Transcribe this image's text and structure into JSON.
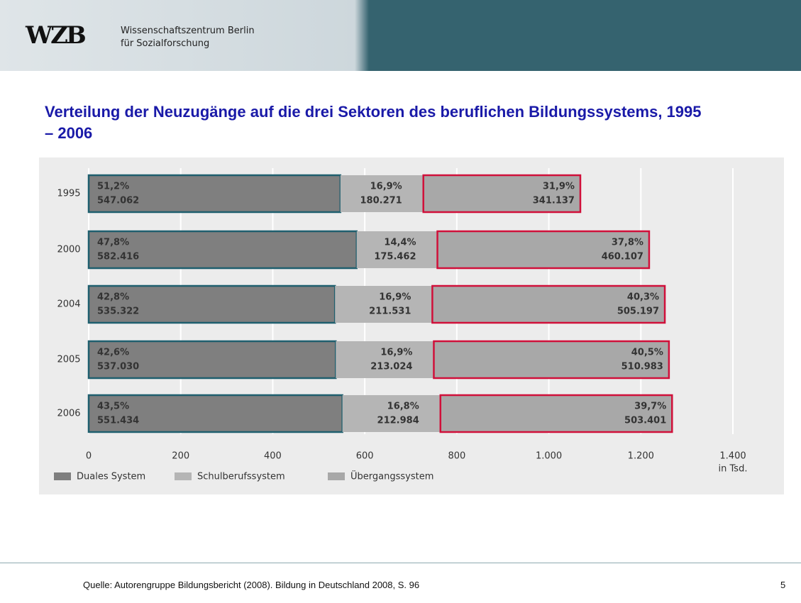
{
  "header": {
    "logo": "WZB",
    "org_line1": "Wissenschaftszentrum Berlin",
    "org_line2": "für Sozialforschung"
  },
  "chart_data": {
    "type": "bar",
    "orientation": "horizontal",
    "stacked": true,
    "title": "Verteilung der Neuzugänge auf die drei Sektoren des beruflichen Bildungssystems, 1995 – 2006",
    "x_unit_label": "in Tsd.",
    "categories": [
      "1995",
      "2000",
      "2004",
      "2005",
      "2006"
    ],
    "series": [
      {
        "name": "Duales System",
        "color": "#7f7f7f",
        "border_color": "#1f5f6e",
        "values": [
          547.062,
          582.416,
          535.322,
          537.03,
          551.434
        ],
        "value_labels": [
          "547.062",
          "582.416",
          "535.322",
          "537.030",
          "551.434"
        ],
        "shares": [
          51.2,
          47.8,
          42.8,
          42.6,
          43.5
        ],
        "share_labels": [
          "51,2%",
          "47,8%",
          "42,8%",
          "42,6%",
          "43,5%"
        ]
      },
      {
        "name": "Schulberufssystem",
        "color": "#b5b5b5",
        "values": [
          180.271,
          175.462,
          211.531,
          213.024,
          212.984
        ],
        "value_labels": [
          "180.271",
          "175.462",
          "211.531",
          "213.024",
          "212.984"
        ],
        "shares": [
          16.9,
          14.4,
          16.9,
          16.9,
          16.8
        ],
        "share_labels": [
          "16,9%",
          "14,4%",
          "16,9%",
          "16,9%",
          "16,8%"
        ]
      },
      {
        "name": "Übergangssystem",
        "color": "#a8a8a8",
        "border_color": "#d0103a",
        "values": [
          341.137,
          460.107,
          505.197,
          510.983,
          503.401
        ],
        "value_labels": [
          "341.137",
          "460.107",
          "505.197",
          "510.983",
          "503.401"
        ],
        "shares": [
          31.9,
          37.8,
          40.3,
          40.5,
          39.7
        ],
        "share_labels": [
          "31,9%",
          "37,8%",
          "40,3%",
          "40,5%",
          "39,7%"
        ]
      }
    ],
    "xlim": [
      0,
      1400
    ],
    "xticks": [
      0,
      200,
      400,
      600,
      800,
      {
        "value": 1000,
        "label": "1.000"
      },
      {
        "value": 1200,
        "label": "1.200"
      },
      {
        "value": 1400,
        "label": "1.400"
      }
    ],
    "grid": true
  },
  "footer": {
    "source": "Quelle: Autorengruppe Bildungsbericht (2008). Bildung in Deutschland 2008, S. 96",
    "page": "5"
  }
}
